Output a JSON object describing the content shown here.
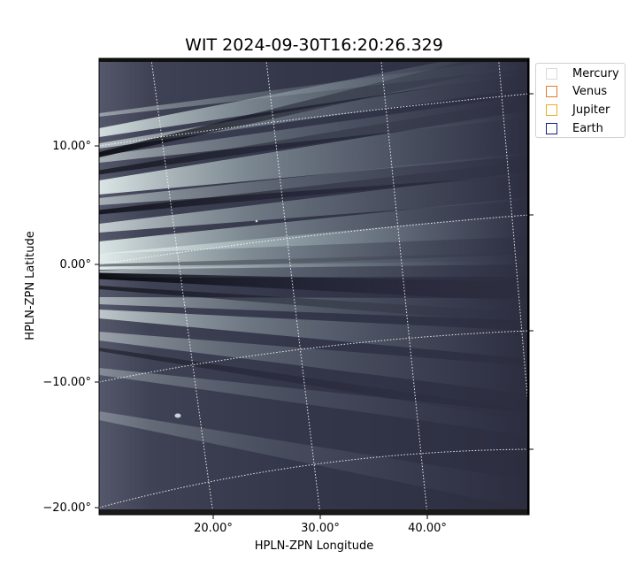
{
  "chart_data": {
    "type": "heatmap",
    "title": "WIT 2024-09-30T16:20:26.329",
    "xlabel": "HPLN-ZPN Longitude",
    "ylabel": "HPLN-ZPN Latitude",
    "x_ticks": [
      "20.00°",
      "30.00°",
      "40.00°"
    ],
    "y_ticks": [
      "10.00°",
      "0.00°",
      "−10.00°",
      "−20.00°"
    ],
    "colormap": "bone",
    "grid": true,
    "legend_position": "right",
    "legend": [
      {
        "name": "Mercury",
        "color": "#d9d9d9"
      },
      {
        "name": "Venus",
        "color": "#e07a2e"
      },
      {
        "name": "Jupiter",
        "color": "#e8b020"
      },
      {
        "name": "Earth",
        "color": "#1a1a7a"
      }
    ]
  }
}
